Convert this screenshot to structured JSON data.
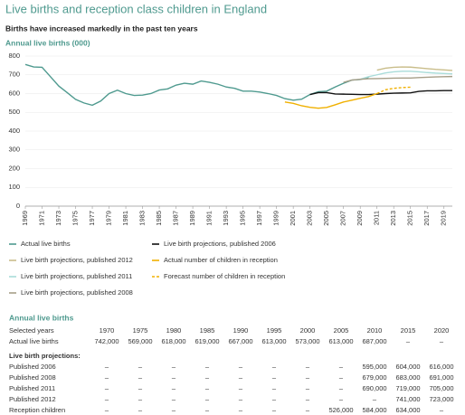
{
  "chart_data": {
    "type": "line",
    "title": "Live births and reception class children in England",
    "subtitle": "Births have increased markedly in the past ten years",
    "y_label": "Annual live births (000)",
    "xlim": [
      1969,
      2020
    ],
    "ylim": [
      0,
      800
    ],
    "xticks": [
      1969,
      1971,
      1973,
      1975,
      1977,
      1979,
      1981,
      1983,
      1985,
      1987,
      1989,
      1991,
      1993,
      1995,
      1997,
      1999,
      2001,
      2003,
      2005,
      2007,
      2009,
      2011,
      2013,
      2015,
      2017,
      2019
    ],
    "yticks": [
      0,
      100,
      200,
      300,
      400,
      500,
      600,
      700,
      800
    ],
    "grid": true,
    "series": [
      {
        "name": "Actual live births",
        "color": "#4f9a8f",
        "x": [
          1969,
          1970,
          1971,
          1972,
          1973,
          1974,
          1975,
          1976,
          1977,
          1978,
          1979,
          1980,
          1981,
          1982,
          1983,
          1984,
          1985,
          1986,
          1987,
          1988,
          1989,
          1990,
          1991,
          1992,
          1993,
          1994,
          1995,
          1996,
          1997,
          1998,
          1999,
          2000,
          2001,
          2002,
          2003,
          2004,
          2005,
          2006,
          2007,
          2008,
          2009,
          2010
        ],
        "values": [
          755,
          742,
          740,
          690,
          640,
          605,
          569,
          550,
          538,
          560,
          600,
          618,
          600,
          590,
          592,
          600,
          619,
          625,
          645,
          655,
          650,
          667,
          660,
          650,
          635,
          628,
          613,
          613,
          608,
          600,
          590,
          573,
          565,
          570,
          595,
          610,
          613,
          635,
          655,
          672,
          675,
          687
        ]
      },
      {
        "name": "Live birth projections, published 2012",
        "color": "#c9bd8a",
        "x": [
          2011,
          2012,
          2013,
          2014,
          2015,
          2016,
          2017,
          2018,
          2019,
          2020
        ],
        "values": [
          725,
          735,
          740,
          742,
          741,
          737,
          733,
          729,
          726,
          723
        ]
      },
      {
        "name": "Live birth projections, published 2011",
        "color": "#a9dcd9",
        "x": [
          2009,
          2010,
          2011,
          2012,
          2013,
          2014,
          2015,
          2016,
          2017,
          2018,
          2019,
          2020
        ],
        "values": [
          676,
          690,
          700,
          710,
          716,
          719,
          719,
          716,
          712,
          709,
          707,
          705
        ]
      },
      {
        "name": "Live birth projections, published 2008",
        "color": "#a69e88",
        "x": [
          2007,
          2008,
          2009,
          2010,
          2011,
          2012,
          2013,
          2014,
          2015,
          2016,
          2017,
          2018,
          2019,
          2020
        ],
        "values": [
          660,
          672,
          676,
          679,
          680,
          681,
          682,
          683,
          683,
          685,
          687,
          689,
          690,
          691
        ]
      },
      {
        "name": "Live birth projections, published 2006",
        "color": "#111111",
        "x": [
          2003,
          2004,
          2005,
          2006,
          2007,
          2008,
          2009,
          2010,
          2011,
          2012,
          2013,
          2014,
          2015,
          2016,
          2017,
          2018,
          2019,
          2020
        ],
        "values": [
          595,
          605,
          605,
          598,
          597,
          596,
          595,
          595,
          597,
          600,
          602,
          603,
          604,
          612,
          615,
          615,
          616,
          616
        ]
      },
      {
        "name": "Actual number of children in reception",
        "color": "#f0b000",
        "x": [
          2000,
          2001,
          2002,
          2003,
          2004,
          2005,
          2006,
          2007,
          2008,
          2009,
          2010,
          2011
        ],
        "values": [
          555,
          548,
          535,
          527,
          522,
          526,
          540,
          555,
          565,
          575,
          584,
          600
        ]
      },
      {
        "name": "Forecast number of children in reception",
        "color": "#f0b000",
        "dashed": true,
        "x": [
          2011,
          2012,
          2013,
          2014,
          2015
        ],
        "values": [
          600,
          620,
          628,
          632,
          634
        ]
      }
    ]
  },
  "table": {
    "title": "Annual live births",
    "columns": [
      "Selected years",
      "1970",
      "1975",
      "1980",
      "1985",
      "1990",
      "1995",
      "2000",
      "2005",
      "2010",
      "2015",
      "2020"
    ],
    "rows": [
      [
        "Actual live births",
        "742,000",
        "569,000",
        "618,000",
        "619,000",
        "667,000",
        "613,000",
        "573,000",
        "613,000",
        "687,000",
        "–",
        "–"
      ]
    ],
    "section": "Live birth projections:",
    "projection_rows": [
      [
        "Published 2006",
        "–",
        "–",
        "–",
        "–",
        "–",
        "–",
        "–",
        "–",
        "595,000",
        "604,000",
        "616,000"
      ],
      [
        "Published 2008",
        "–",
        "–",
        "–",
        "–",
        "–",
        "–",
        "–",
        "–",
        "679,000",
        "683,000",
        "691,000"
      ],
      [
        "Published 2011",
        "–",
        "–",
        "–",
        "–",
        "–",
        "–",
        "–",
        "–",
        "690,000",
        "719,000",
        "705,000"
      ],
      [
        "Published 2012",
        "–",
        "–",
        "–",
        "–",
        "–",
        "–",
        "–",
        "–",
        "–",
        "741,000",
        "723,000"
      ],
      [
        "Reception children",
        "–",
        "–",
        "–",
        "–",
        "–",
        "–",
        "–",
        "526,000",
        "584,000",
        "634,000",
        "–"
      ]
    ]
  }
}
